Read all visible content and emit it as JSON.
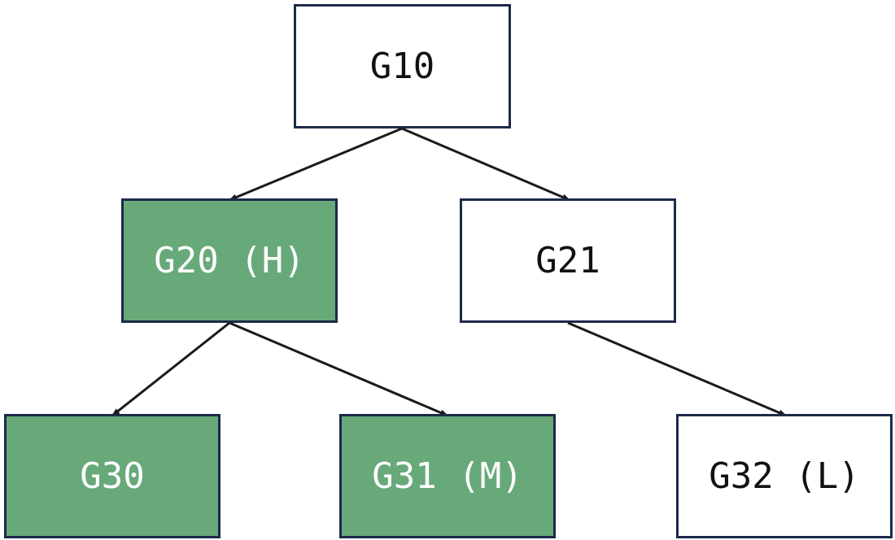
{
  "colors": {
    "highlight_fill": "#68a97a",
    "highlight_text": "#ffffff",
    "plain_fill": "#ffffff",
    "plain_text": "#111111",
    "border": "#1c2a4a",
    "edge": "#1a1a1a"
  },
  "nodes": [
    {
      "id": "g10",
      "label": "G10",
      "highlighted": false
    },
    {
      "id": "g20",
      "label": "G20 (H)",
      "highlighted": true
    },
    {
      "id": "g21",
      "label": "G21",
      "highlighted": false
    },
    {
      "id": "g30",
      "label": "G30",
      "highlighted": true
    },
    {
      "id": "g31",
      "label": "G31 (M)",
      "highlighted": true
    },
    {
      "id": "g32",
      "label": "G32 (L)",
      "highlighted": false
    }
  ],
  "edges": [
    {
      "from": "g10",
      "to": "g20"
    },
    {
      "from": "g10",
      "to": "g21"
    },
    {
      "from": "g20",
      "to": "g30"
    },
    {
      "from": "g20",
      "to": "g31"
    },
    {
      "from": "g21",
      "to": "g32"
    }
  ]
}
